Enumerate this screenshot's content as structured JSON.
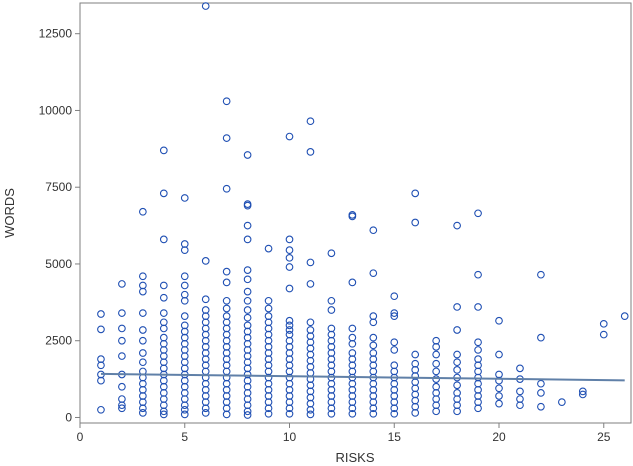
{
  "chart_data": {
    "type": "scatter",
    "xlabel": "RISKS",
    "ylabel": "WORDS",
    "xlim": [
      0,
      26.3
    ],
    "ylim": [
      -180,
      13500
    ],
    "xticks": [
      0,
      5,
      10,
      15,
      20,
      25
    ],
    "yticks": [
      0,
      2500,
      5000,
      7500,
      10000,
      12500
    ],
    "grid": false,
    "legend": "none",
    "colors": {
      "marker": "#1f4fb3",
      "fit_line": "#6080a8",
      "frame": "#7f7f7f"
    },
    "fit_line": {
      "x": [
        1,
        26
      ],
      "y": [
        1420,
        1210
      ]
    },
    "points": [
      [
        1,
        3370
      ],
      [
        1,
        2870
      ],
      [
        1,
        1900
      ],
      [
        1,
        1700
      ],
      [
        1,
        1400
      ],
      [
        1,
        1200
      ],
      [
        1,
        250
      ],
      [
        2,
        4350
      ],
      [
        2,
        3400
      ],
      [
        2,
        2900
      ],
      [
        2,
        2500
      ],
      [
        2,
        2000
      ],
      [
        2,
        1400
      ],
      [
        2,
        1000
      ],
      [
        2,
        600
      ],
      [
        2,
        400
      ],
      [
        2,
        300
      ],
      [
        3,
        6700
      ],
      [
        3,
        4600
      ],
      [
        3,
        4300
      ],
      [
        3,
        4100
      ],
      [
        3,
        3400
      ],
      [
        3,
        2850
      ],
      [
        3,
        2500
      ],
      [
        3,
        2100
      ],
      [
        3,
        1800
      ],
      [
        3,
        1500
      ],
      [
        3,
        1300
      ],
      [
        3,
        1100
      ],
      [
        3,
        900
      ],
      [
        3,
        700
      ],
      [
        3,
        500
      ],
      [
        3,
        300
      ],
      [
        3,
        150
      ],
      [
        4,
        8700
      ],
      [
        4,
        7300
      ],
      [
        4,
        5800
      ],
      [
        4,
        4300
      ],
      [
        4,
        3900
      ],
      [
        4,
        3400
      ],
      [
        4,
        3100
      ],
      [
        4,
        2900
      ],
      [
        4,
        2600
      ],
      [
        4,
        2400
      ],
      [
        4,
        2200
      ],
      [
        4,
        2000
      ],
      [
        4,
        1800
      ],
      [
        4,
        1600
      ],
      [
        4,
        1400
      ],
      [
        4,
        1200
      ],
      [
        4,
        1000
      ],
      [
        4,
        800
      ],
      [
        4,
        600
      ],
      [
        4,
        400
      ],
      [
        4,
        200
      ],
      [
        4,
        100
      ],
      [
        5,
        7150
      ],
      [
        5,
        5650
      ],
      [
        5,
        5450
      ],
      [
        5,
        4600
      ],
      [
        5,
        4300
      ],
      [
        5,
        4000
      ],
      [
        5,
        3800
      ],
      [
        5,
        3300
      ],
      [
        5,
        3000
      ],
      [
        5,
        2800
      ],
      [
        5,
        2600
      ],
      [
        5,
        2400
      ],
      [
        5,
        2200
      ],
      [
        5,
        2000
      ],
      [
        5,
        1800
      ],
      [
        5,
        1600
      ],
      [
        5,
        1400
      ],
      [
        5,
        1200
      ],
      [
        5,
        1000
      ],
      [
        5,
        800
      ],
      [
        5,
        600
      ],
      [
        5,
        400
      ],
      [
        5,
        250
      ],
      [
        5,
        100
      ],
      [
        6,
        13400
      ],
      [
        6,
        5100
      ],
      [
        6,
        3850
      ],
      [
        6,
        3500
      ],
      [
        6,
        3300
      ],
      [
        6,
        3100
      ],
      [
        6,
        2900
      ],
      [
        6,
        2700
      ],
      [
        6,
        2500
      ],
      [
        6,
        2300
      ],
      [
        6,
        2100
      ],
      [
        6,
        1900
      ],
      [
        6,
        1700
      ],
      [
        6,
        1500
      ],
      [
        6,
        1300
      ],
      [
        6,
        1100
      ],
      [
        6,
        900
      ],
      [
        6,
        700
      ],
      [
        6,
        500
      ],
      [
        6,
        300
      ],
      [
        6,
        150
      ],
      [
        7,
        10300
      ],
      [
        7,
        9100
      ],
      [
        7,
        7450
      ],
      [
        7,
        4750
      ],
      [
        7,
        4400
      ],
      [
        7,
        3800
      ],
      [
        7,
        3550
      ],
      [
        7,
        3300
      ],
      [
        7,
        3100
      ],
      [
        7,
        2900
      ],
      [
        7,
        2700
      ],
      [
        7,
        2500
      ],
      [
        7,
        2300
      ],
      [
        7,
        2100
      ],
      [
        7,
        1900
      ],
      [
        7,
        1700
      ],
      [
        7,
        1500
      ],
      [
        7,
        1300
      ],
      [
        7,
        1100
      ],
      [
        7,
        900
      ],
      [
        7,
        700
      ],
      [
        7,
        500
      ],
      [
        7,
        300
      ],
      [
        7,
        100
      ],
      [
        8,
        8550
      ],
      [
        8,
        6950
      ],
      [
        8,
        6900
      ],
      [
        8,
        6250
      ],
      [
        8,
        5800
      ],
      [
        8,
        4800
      ],
      [
        8,
        4500
      ],
      [
        8,
        4100
      ],
      [
        8,
        3800
      ],
      [
        8,
        3500
      ],
      [
        8,
        3250
      ],
      [
        8,
        3000
      ],
      [
        8,
        2800
      ],
      [
        8,
        2600
      ],
      [
        8,
        2400
      ],
      [
        8,
        2200
      ],
      [
        8,
        2000
      ],
      [
        8,
        1800
      ],
      [
        8,
        1600
      ],
      [
        8,
        1400
      ],
      [
        8,
        1200
      ],
      [
        8,
        1000
      ],
      [
        8,
        800
      ],
      [
        8,
        600
      ],
      [
        8,
        400
      ],
      [
        8,
        200
      ],
      [
        8,
        80
      ],
      [
        9,
        5500
      ],
      [
        9,
        3800
      ],
      [
        9,
        3550
      ],
      [
        9,
        3300
      ],
      [
        9,
        3100
      ],
      [
        9,
        2900
      ],
      [
        9,
        2700
      ],
      [
        9,
        2500
      ],
      [
        9,
        2300
      ],
      [
        9,
        2100
      ],
      [
        9,
        1900
      ],
      [
        9,
        1700
      ],
      [
        9,
        1500
      ],
      [
        9,
        1300
      ],
      [
        9,
        1100
      ],
      [
        9,
        900
      ],
      [
        9,
        700
      ],
      [
        9,
        500
      ],
      [
        9,
        300
      ],
      [
        9,
        120
      ],
      [
        10,
        9150
      ],
      [
        10,
        5800
      ],
      [
        10,
        5450
      ],
      [
        10,
        5200
      ],
      [
        10,
        4900
      ],
      [
        10,
        4200
      ],
      [
        10,
        3150
      ],
      [
        10,
        3000
      ],
      [
        10,
        2850
      ],
      [
        10,
        2700
      ],
      [
        10,
        2500
      ],
      [
        10,
        2300
      ],
      [
        10,
        2100
      ],
      [
        10,
        1900
      ],
      [
        10,
        1700
      ],
      [
        10,
        1500
      ],
      [
        10,
        1300
      ],
      [
        10,
        1100
      ],
      [
        10,
        900
      ],
      [
        10,
        700
      ],
      [
        10,
        500
      ],
      [
        10,
        300
      ],
      [
        10,
        120
      ],
      [
        11,
        9650
      ],
      [
        11,
        8650
      ],
      [
        11,
        5050
      ],
      [
        11,
        4350
      ],
      [
        11,
        3100
      ],
      [
        11,
        2850
      ],
      [
        11,
        2650
      ],
      [
        11,
        2450
      ],
      [
        11,
        2250
      ],
      [
        11,
        2050
      ],
      [
        11,
        1850
      ],
      [
        11,
        1650
      ],
      [
        11,
        1450
      ],
      [
        11,
        1250
      ],
      [
        11,
        1050
      ],
      [
        11,
        850
      ],
      [
        11,
        650
      ],
      [
        11,
        450
      ],
      [
        11,
        250
      ],
      [
        11,
        100
      ],
      [
        12,
        5350
      ],
      [
        12,
        3800
      ],
      [
        12,
        3500
      ],
      [
        12,
        2900
      ],
      [
        12,
        2700
      ],
      [
        12,
        2500
      ],
      [
        12,
        2300
      ],
      [
        12,
        2100
      ],
      [
        12,
        1900
      ],
      [
        12,
        1700
      ],
      [
        12,
        1500
      ],
      [
        12,
        1300
      ],
      [
        12,
        1100
      ],
      [
        12,
        900
      ],
      [
        12,
        700
      ],
      [
        12,
        500
      ],
      [
        12,
        300
      ],
      [
        12,
        120
      ],
      [
        13,
        6600
      ],
      [
        13,
        6550
      ],
      [
        13,
        4400
      ],
      [
        13,
        2900
      ],
      [
        13,
        2600
      ],
      [
        13,
        2400
      ],
      [
        13,
        2100
      ],
      [
        13,
        1900
      ],
      [
        13,
        1700
      ],
      [
        13,
        1500
      ],
      [
        13,
        1300
      ],
      [
        13,
        1100
      ],
      [
        13,
        900
      ],
      [
        13,
        700
      ],
      [
        13,
        500
      ],
      [
        13,
        300
      ],
      [
        13,
        120
      ],
      [
        14,
        6100
      ],
      [
        14,
        4700
      ],
      [
        14,
        3300
      ],
      [
        14,
        3100
      ],
      [
        14,
        2600
      ],
      [
        14,
        2350
      ],
      [
        14,
        2100
      ],
      [
        14,
        1900
      ],
      [
        14,
        1700
      ],
      [
        14,
        1500
      ],
      [
        14,
        1300
      ],
      [
        14,
        1100
      ],
      [
        14,
        900
      ],
      [
        14,
        700
      ],
      [
        14,
        500
      ],
      [
        14,
        300
      ],
      [
        14,
        120
      ],
      [
        15,
        3950
      ],
      [
        15,
        3400
      ],
      [
        15,
        3300
      ],
      [
        15,
        2450
      ],
      [
        15,
        2200
      ],
      [
        15,
        1700
      ],
      [
        15,
        1500
      ],
      [
        15,
        1300
      ],
      [
        15,
        1100
      ],
      [
        15,
        900
      ],
      [
        15,
        700
      ],
      [
        15,
        500
      ],
      [
        15,
        300
      ],
      [
        15,
        120
      ],
      [
        16,
        7300
      ],
      [
        16,
        6350
      ],
      [
        16,
        2050
      ],
      [
        16,
        1750
      ],
      [
        16,
        1550
      ],
      [
        16,
        1350
      ],
      [
        16,
        1150
      ],
      [
        16,
        950
      ],
      [
        16,
        750
      ],
      [
        16,
        550
      ],
      [
        16,
        350
      ],
      [
        16,
        150
      ],
      [
        17,
        2500
      ],
      [
        17,
        2300
      ],
      [
        17,
        2050
      ],
      [
        17,
        1750
      ],
      [
        17,
        1500
      ],
      [
        17,
        1250
      ],
      [
        17,
        1000
      ],
      [
        17,
        800
      ],
      [
        17,
        600
      ],
      [
        17,
        400
      ],
      [
        17,
        200
      ],
      [
        18,
        6250
      ],
      [
        18,
        3600
      ],
      [
        18,
        2850
      ],
      [
        18,
        2050
      ],
      [
        18,
        1800
      ],
      [
        18,
        1550
      ],
      [
        18,
        1300
      ],
      [
        18,
        1050
      ],
      [
        18,
        800
      ],
      [
        18,
        600
      ],
      [
        18,
        400
      ],
      [
        18,
        200
      ],
      [
        19,
        6650
      ],
      [
        19,
        4650
      ],
      [
        19,
        3600
      ],
      [
        19,
        2450
      ],
      [
        19,
        2200
      ],
      [
        19,
        1900
      ],
      [
        19,
        1700
      ],
      [
        19,
        1500
      ],
      [
        19,
        1300
      ],
      [
        19,
        1100
      ],
      [
        19,
        900
      ],
      [
        19,
        700
      ],
      [
        19,
        500
      ],
      [
        19,
        300
      ],
      [
        20,
        3150
      ],
      [
        20,
        2050
      ],
      [
        20,
        1400
      ],
      [
        20,
        1200
      ],
      [
        20,
        950
      ],
      [
        20,
        700
      ],
      [
        20,
        450
      ],
      [
        21,
        1600
      ],
      [
        21,
        1250
      ],
      [
        21,
        850
      ],
      [
        21,
        600
      ],
      [
        21,
        400
      ],
      [
        22,
        4650
      ],
      [
        22,
        2600
      ],
      [
        22,
        1100
      ],
      [
        22,
        800
      ],
      [
        22,
        350
      ],
      [
        23,
        500
      ],
      [
        24,
        850
      ],
      [
        24,
        750
      ],
      [
        25,
        3050
      ],
      [
        25,
        2700
      ],
      [
        26,
        3300
      ]
    ]
  }
}
